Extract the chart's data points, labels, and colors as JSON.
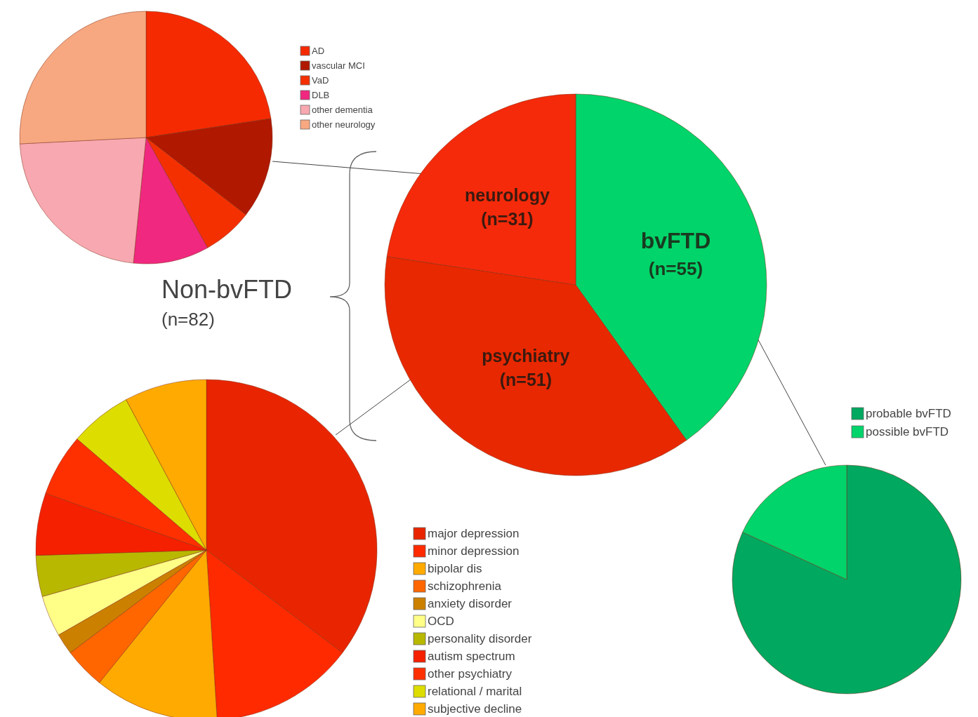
{
  "chart_data": [
    {
      "type": "pie",
      "categories": [
        "bvFTD",
        "psychiatry",
        "neurology"
      ],
      "values": [
        55,
        51,
        31
      ],
      "colors": [
        "#00d46a",
        "#e82800",
        "#f52a0a"
      ],
      "value_labels": [
        "(n=55)",
        "(n=51)",
        "(n=31)"
      ],
      "annotations": [
        "Non-bvFTD",
        "(n=82)"
      ]
    },
    {
      "type": "pie",
      "categories": [
        "AD",
        "vascular MCI",
        "VaD",
        "DLB",
        "other dementia",
        "other neurology"
      ],
      "values": [
        22.6,
        12.9,
        6.4,
        9.7,
        22.6,
        25.8
      ],
      "colors": [
        "#f52a00",
        "#b01800",
        "#f53000",
        "#f0287f",
        "#f8a8b0",
        "#f8a880"
      ],
      "legend": "top right"
    },
    {
      "type": "pie",
      "categories": [
        "major depression",
        "minor depression",
        "bipolar dis",
        "schizophrenia",
        "anxiety disorder",
        "OCD",
        "personality disorder",
        "autism spectrum",
        "other psychiatry",
        "relational / marital",
        "subjective decline"
      ],
      "values": [
        35.3,
        13.7,
        11.8,
        3.9,
        2.0,
        3.9,
        3.9,
        5.9,
        5.9,
        5.9,
        7.8
      ],
      "colors": [
        "#e82500",
        "#ff2a00",
        "#ffaa00",
        "#ff6600",
        "#cc8000",
        "#ffff88",
        "#b8b800",
        "#f52000",
        "#ff3000",
        "#dddd00",
        "#ffaa00"
      ],
      "legend": "bottom right"
    },
    {
      "type": "pie",
      "categories": [
        "probable bvFTD",
        "possible bvFTD"
      ],
      "values": [
        81.8,
        18.2
      ],
      "colors": [
        "#00a860",
        "#00d46a"
      ],
      "legend": "top"
    }
  ]
}
